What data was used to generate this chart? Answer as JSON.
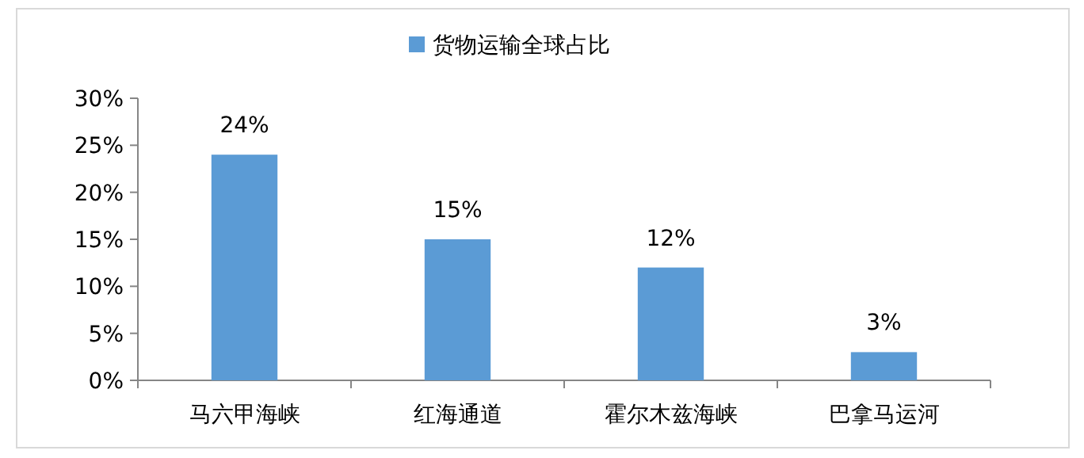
{
  "chart_data": {
    "type": "bar",
    "categories": [
      "马六甲海峡",
      "红海通道",
      "霍尔木兹海峡",
      "巴拿马运河"
    ],
    "series": [
      {
        "name": "货物运输全球占比",
        "color": "#5b9bd5",
        "values": [
          24,
          15,
          12,
          3
        ],
        "value_labels": [
          "24%",
          "15%",
          "12%",
          "3%"
        ]
      }
    ],
    "ylim": [
      0,
      30
    ],
    "yticks": [
      {
        "value": 0,
        "label": "0%"
      },
      {
        "value": 5,
        "label": "5%"
      },
      {
        "value": 10,
        "label": "10%"
      },
      {
        "value": 15,
        "label": "15%"
      },
      {
        "value": 20,
        "label": "20%"
      },
      {
        "value": 25,
        "label": "25%"
      },
      {
        "value": 30,
        "label": "30%"
      }
    ],
    "legend": "top",
    "grid": false
  }
}
